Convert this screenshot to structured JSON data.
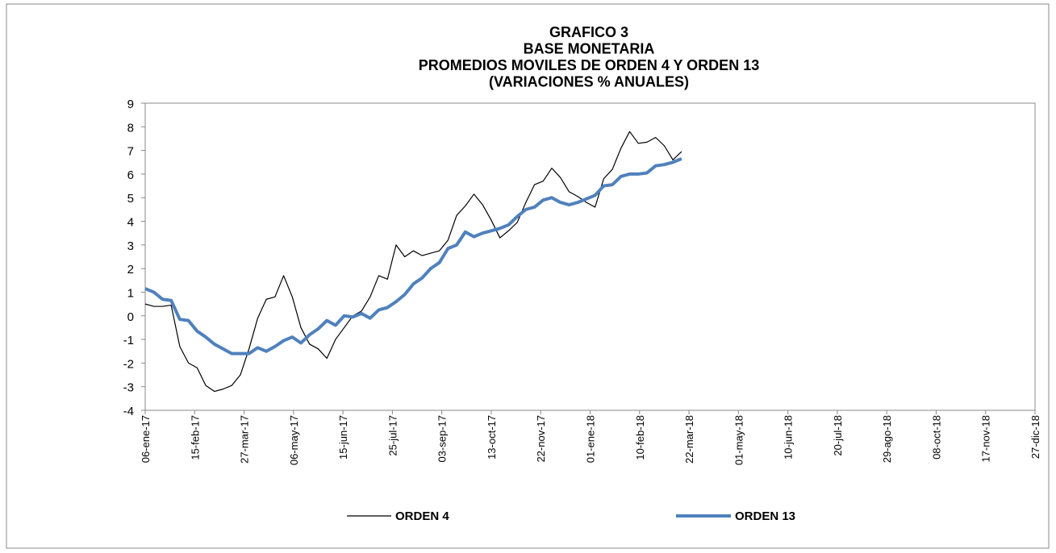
{
  "chart_data": {
    "type": "line",
    "title": [
      "GRAFICO 3",
      "BASE MONETARIA",
      "PROMEDIOS  MOVILES DE ORDEN  4 Y ORDEN 13",
      "(VARIACIONES  % ANUALES)"
    ],
    "x": [
      "06-ene-17",
      "13-ene-17",
      "20-ene-17",
      "27-ene-17",
      "03-feb-17",
      "10-feb-17",
      "17-feb-17",
      "24-feb-17",
      "03-mar-17",
      "10-mar-17",
      "17-mar-17",
      "24-mar-17",
      "31-mar-17",
      "07-abr-17",
      "14-abr-17",
      "21-abr-17",
      "28-abr-17",
      "05-may-17",
      "12-may-17",
      "19-may-17",
      "26-may-17",
      "02-jun-17",
      "09-jun-17",
      "16-jun-17",
      "23-jun-17",
      "30-jun-17",
      "07-jul-17",
      "14-jul-17",
      "21-jul-17",
      "28-jul-17",
      "04-ago-17",
      "11-ago-17",
      "18-ago-17",
      "25-ago-17",
      "01-sep-17",
      "08-sep-17",
      "15-sep-17",
      "22-sep-17",
      "29-sep-17",
      "06-oct-17",
      "13-oct-17",
      "20-oct-17",
      "27-oct-17",
      "03-nov-17",
      "10-nov-17",
      "17-nov-17",
      "24-nov-17",
      "01-dic-17",
      "08-dic-17",
      "15-dic-17",
      "22-dic-17",
      "29-dic-17",
      "05-ene-18",
      "12-ene-18",
      "19-ene-18",
      "26-ene-18",
      "02-feb-18",
      "09-feb-18",
      "16-feb-18",
      "23-feb-18",
      "02-mar-18",
      "09-mar-18",
      "16-mar-18"
    ],
    "series": [
      {
        "name": "ORDEN 4",
        "color": "#000000",
        "width": 1.2,
        "values": [
          0.5,
          0.4,
          0.4,
          0.45,
          -1.3,
          -2.0,
          -2.2,
          -2.95,
          -3.2,
          -3.1,
          -2.95,
          -2.5,
          -1.4,
          -0.1,
          0.7,
          0.8,
          1.7,
          0.8,
          -0.5,
          -1.2,
          -1.4,
          -1.8,
          -1.0,
          -0.5,
          0.0,
          0.2,
          0.8,
          1.7,
          1.55,
          3.0,
          2.5,
          2.75,
          2.55,
          2.65,
          2.75,
          3.2,
          4.25,
          4.65,
          5.15,
          4.7,
          4.05,
          3.3,
          3.6,
          3.95,
          4.8,
          5.55,
          5.7,
          6.25,
          5.85,
          5.25,
          5.05,
          4.8,
          4.6,
          5.8,
          6.2,
          7.1,
          7.8,
          7.3,
          7.35,
          7.55,
          7.2,
          6.6,
          6.95
        ]
      },
      {
        "name": "ORDEN 13",
        "color": "#4f81bd",
        "width": 4,
        "values": [
          1.15,
          1.0,
          0.7,
          0.65,
          -0.15,
          -0.2,
          -0.65,
          -0.9,
          -1.2,
          -1.4,
          -1.6,
          -1.6,
          -1.6,
          -1.35,
          -1.5,
          -1.3,
          -1.05,
          -0.9,
          -1.15,
          -0.8,
          -0.55,
          -0.2,
          -0.4,
          0.0,
          -0.05,
          0.1,
          -0.1,
          0.25,
          0.35,
          0.6,
          0.9,
          1.35,
          1.6,
          2.0,
          2.25,
          2.85,
          3.0,
          3.55,
          3.35,
          3.5,
          3.6,
          3.7,
          3.85,
          4.2,
          4.5,
          4.6,
          4.9,
          5.0,
          4.8,
          4.7,
          4.8,
          4.95,
          5.1,
          5.5,
          5.55,
          5.9,
          6.0,
          6.0,
          6.05,
          6.35,
          6.4,
          6.5,
          6.65
        ]
      }
    ],
    "xlim": [
      "06-ene-17",
      "27-dic-18"
    ],
    "xticks": [
      "06-ene-17",
      "15-feb-17",
      "27-mar-17",
      "06-may-17",
      "15-jun-17",
      "25-jul-17",
      "03-sep-17",
      "13-oct-17",
      "22-nov-17",
      "01-ene-18",
      "10-feb-18",
      "22-mar-18",
      "01-may-18",
      "10-jun-18",
      "20-jul-18",
      "29-ago-18",
      "08-oct-18",
      "17-nov-18",
      "27-dic-18"
    ],
    "ylim": [
      -4,
      9
    ],
    "yticks": [
      -4,
      -3,
      -2,
      -1,
      0,
      1,
      2,
      3,
      4,
      5,
      6,
      7,
      8,
      9
    ],
    "grid": false,
    "legend": "bottom"
  }
}
